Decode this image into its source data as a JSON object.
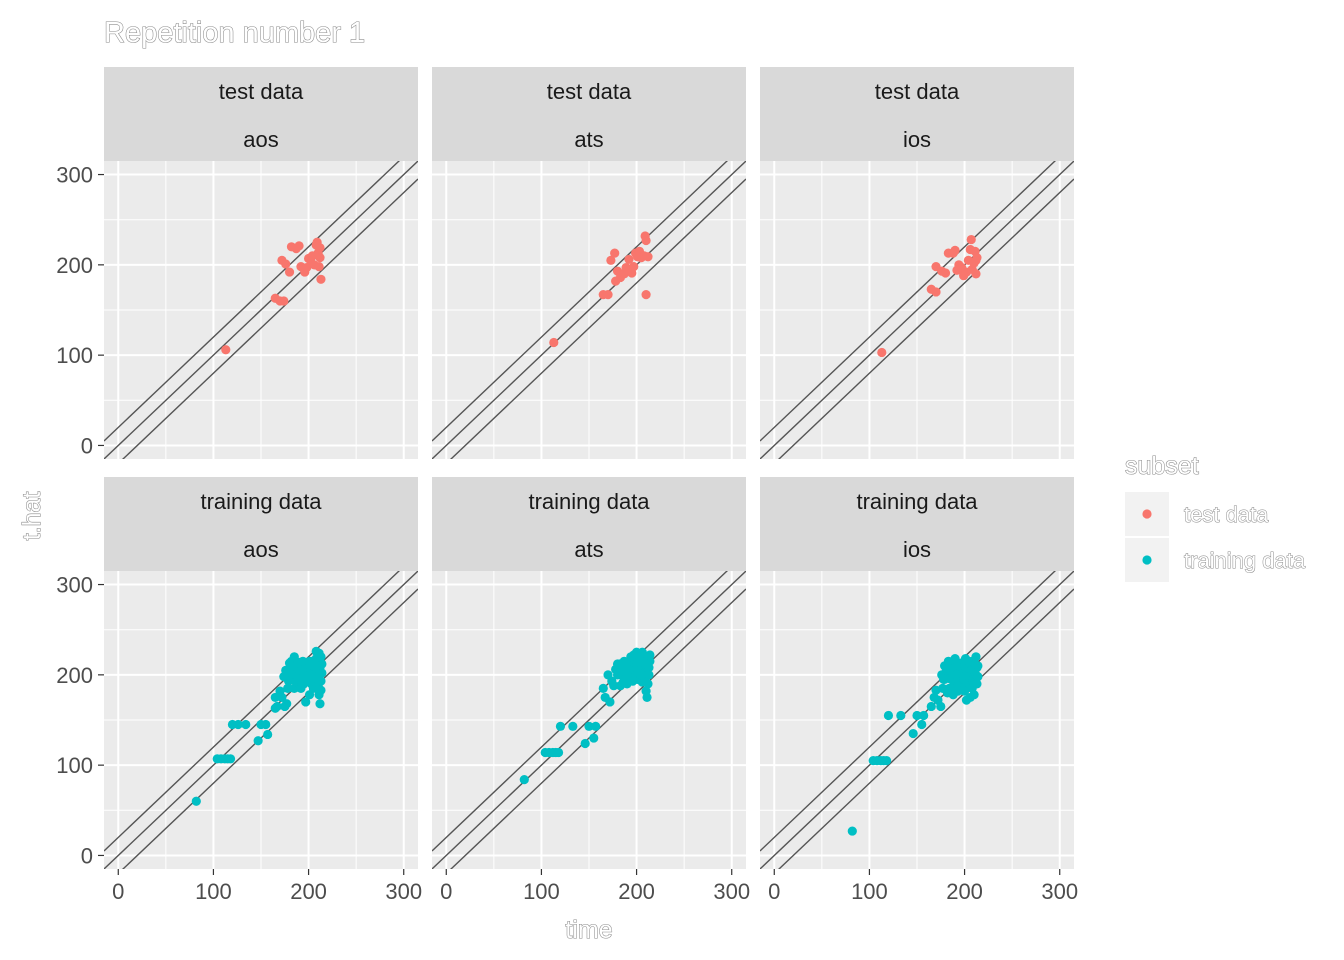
{
  "chart_data": {
    "type": "scatter",
    "title": "Repetition number 1",
    "xlabel": "time",
    "ylabel": "t.hat",
    "xlim": [
      -15,
      315
    ],
    "ylim": [
      -15,
      315
    ],
    "x_ticks": [
      0,
      100,
      200,
      300
    ],
    "y_ticks": [
      0,
      100,
      200,
      300
    ],
    "grid": true,
    "reference_lines": [
      {
        "intercept": 20,
        "slope": 1
      },
      {
        "intercept": 0,
        "slope": 1
      },
      {
        "intercept": -20,
        "slope": 1
      }
    ],
    "legend": {
      "title": "subset",
      "position": "right",
      "entries": [
        {
          "label": "test data",
          "color": "#F8766D"
        },
        {
          "label": "training data",
          "color": "#00BFC4"
        }
      ]
    },
    "facet_rows": [
      "test data",
      "training data"
    ],
    "facet_cols": [
      "aos",
      "ats",
      "ios"
    ],
    "panels": [
      {
        "subset": "test data",
        "platform": "aos",
        "color": "#F8766D",
        "points": [
          [
            113,
            106
          ],
          [
            165,
            163
          ],
          [
            170,
            160
          ],
          [
            174,
            160
          ],
          [
            172,
            205
          ],
          [
            176,
            201
          ],
          [
            180,
            192
          ],
          [
            182,
            220
          ],
          [
            187,
            218
          ],
          [
            190,
            221
          ],
          [
            192,
            198
          ],
          [
            196,
            192
          ],
          [
            198,
            197
          ],
          [
            200,
            207
          ],
          [
            202,
            205
          ],
          [
            204,
            210
          ],
          [
            206,
            200
          ],
          [
            208,
            222
          ],
          [
            209,
            225
          ],
          [
            210,
            213
          ],
          [
            211,
            198
          ],
          [
            212,
            219
          ],
          [
            212,
            208
          ],
          [
            213,
            184
          ]
        ]
      },
      {
        "subset": "test data",
        "platform": "ats",
        "color": "#F8766D",
        "points": [
          [
            113,
            114
          ],
          [
            165,
            167
          ],
          [
            170,
            167
          ],
          [
            173,
            205
          ],
          [
            177,
            213
          ],
          [
            178,
            182
          ],
          [
            180,
            193
          ],
          [
            183,
            186
          ],
          [
            187,
            190
          ],
          [
            189,
            197
          ],
          [
            192,
            206
          ],
          [
            195,
            191
          ],
          [
            197,
            198
          ],
          [
            199,
            213
          ],
          [
            201,
            209
          ],
          [
            203,
            215
          ],
          [
            205,
            208
          ],
          [
            208,
            210
          ],
          [
            209,
            232
          ],
          [
            210,
            227
          ],
          [
            210,
            167
          ],
          [
            212,
            209
          ]
        ]
      },
      {
        "subset": "test data",
        "platform": "ios",
        "color": "#F8766D",
        "points": [
          [
            113,
            103
          ],
          [
            165,
            173
          ],
          [
            170,
            170
          ],
          [
            170,
            198
          ],
          [
            176,
            193
          ],
          [
            180,
            191
          ],
          [
            183,
            213
          ],
          [
            188,
            213
          ],
          [
            190,
            216
          ],
          [
            192,
            194
          ],
          [
            194,
            200
          ],
          [
            197,
            197
          ],
          [
            199,
            188
          ],
          [
            202,
            192
          ],
          [
            204,
            205
          ],
          [
            206,
            217
          ],
          [
            207,
            228
          ],
          [
            208,
            195
          ],
          [
            210,
            202
          ],
          [
            211,
            215
          ],
          [
            212,
            205
          ],
          [
            212,
            190
          ],
          [
            213,
            208
          ]
        ]
      },
      {
        "subset": "training data",
        "platform": "aos",
        "color": "#00BFC4",
        "points": [
          [
            82,
            60
          ],
          [
            104,
            107
          ],
          [
            108,
            107
          ],
          [
            112,
            107
          ],
          [
            115,
            107
          ],
          [
            118,
            107
          ],
          [
            120,
            145
          ],
          [
            126,
            145
          ],
          [
            134,
            145
          ],
          [
            147,
            127
          ],
          [
            150,
            145
          ],
          [
            155,
            145
          ],
          [
            157,
            134
          ],
          [
            165,
            163
          ],
          [
            165,
            175
          ],
          [
            167,
            165
          ],
          [
            170,
            182
          ],
          [
            172,
            175
          ],
          [
            175,
            165
          ],
          [
            177,
            168
          ],
          [
            178,
            185
          ],
          [
            180,
            195
          ],
          [
            180,
            203
          ],
          [
            180,
            213
          ],
          [
            182,
            215
          ],
          [
            184,
            205
          ],
          [
            185,
            185
          ],
          [
            187,
            192
          ],
          [
            188,
            212
          ],
          [
            190,
            210
          ],
          [
            190,
            200
          ],
          [
            192,
            203
          ],
          [
            192,
            185
          ],
          [
            194,
            215
          ],
          [
            195,
            190
          ],
          [
            196,
            203
          ],
          [
            197,
            170
          ],
          [
            198,
            195
          ],
          [
            199,
            208
          ],
          [
            200,
            212
          ],
          [
            200,
            195
          ],
          [
            201,
            178
          ],
          [
            202,
            200
          ],
          [
            203,
            190
          ],
          [
            203,
            208
          ],
          [
            204,
            215
          ],
          [
            205,
            196
          ],
          [
            205,
            185
          ],
          [
            206,
            202
          ],
          [
            207,
            210
          ],
          [
            207,
            192
          ],
          [
            208,
            218
          ],
          [
            208,
            226
          ],
          [
            209,
            205
          ],
          [
            210,
            195
          ],
          [
            210,
            188
          ],
          [
            210,
            213
          ],
          [
            211,
            200
          ],
          [
            211,
            178
          ],
          [
            212,
            168
          ],
          [
            212,
            208
          ],
          [
            213,
            193
          ],
          [
            213,
            183
          ],
          [
            214,
            202
          ],
          [
            214,
            212
          ],
          [
            213,
            220
          ],
          [
            211,
            224
          ],
          [
            209,
            210
          ],
          [
            206,
            205
          ],
          [
            203,
            200
          ],
          [
            201,
            215
          ],
          [
            199,
            202
          ],
          [
            197,
            193
          ],
          [
            195,
            200
          ],
          [
            193,
            208
          ],
          [
            191,
            195
          ],
          [
            189,
            205
          ],
          [
            186,
            198
          ],
          [
            184,
            210
          ],
          [
            182,
            200
          ],
          [
            185,
            220
          ],
          [
            189,
            214
          ],
          [
            179,
            193
          ],
          [
            176,
            205
          ],
          [
            174,
            198
          ]
        ]
      },
      {
        "subset": "training data",
        "platform": "ats",
        "color": "#00BFC4",
        "points": [
          [
            82,
            84
          ],
          [
            104,
            114
          ],
          [
            108,
            114
          ],
          [
            112,
            114
          ],
          [
            115,
            114
          ],
          [
            118,
            114
          ],
          [
            120,
            143
          ],
          [
            133,
            143
          ],
          [
            146,
            124
          ],
          [
            150,
            143
          ],
          [
            155,
            130
          ],
          [
            157,
            143
          ],
          [
            165,
            185
          ],
          [
            167,
            175
          ],
          [
            170,
            200
          ],
          [
            172,
            170
          ],
          [
            174,
            193
          ],
          [
            176,
            188
          ],
          [
            178,
            206
          ],
          [
            180,
            200
          ],
          [
            180,
            212
          ],
          [
            182,
            212
          ],
          [
            183,
            188
          ],
          [
            184,
            200
          ],
          [
            186,
            192
          ],
          [
            188,
            195
          ],
          [
            189,
            208
          ],
          [
            190,
            190
          ],
          [
            191,
            203
          ],
          [
            192,
            213
          ],
          [
            193,
            197
          ],
          [
            194,
            205
          ],
          [
            195,
            212
          ],
          [
            196,
            200
          ],
          [
            197,
            222
          ],
          [
            197,
            207
          ],
          [
            198,
            215
          ],
          [
            199,
            200
          ],
          [
            200,
            225
          ],
          [
            200,
            210
          ],
          [
            201,
            195
          ],
          [
            202,
            215
          ],
          [
            203,
            220
          ],
          [
            203,
            205
          ],
          [
            204,
            200
          ],
          [
            205,
            212
          ],
          [
            206,
            225
          ],
          [
            206,
            192
          ],
          [
            207,
            215
          ],
          [
            208,
            205
          ],
          [
            208,
            220
          ],
          [
            209,
            195
          ],
          [
            210,
            210
          ],
          [
            210,
            182
          ],
          [
            211,
            203
          ],
          [
            211,
            175
          ],
          [
            212,
            218
          ],
          [
            212,
            190
          ],
          [
            213,
            208
          ],
          [
            213,
            200
          ],
          [
            214,
            215
          ],
          [
            214,
            222
          ],
          [
            198,
            205
          ],
          [
            196,
            193
          ],
          [
            194,
            220
          ],
          [
            185,
            205
          ],
          [
            187,
            215
          ],
          [
            201,
            203
          ],
          [
            205,
            200
          ],
          [
            209,
            213
          ]
        ]
      },
      {
        "subset": "training data",
        "platform": "ios",
        "color": "#00BFC4",
        "points": [
          [
            82,
            27
          ],
          [
            104,
            105
          ],
          [
            108,
            105
          ],
          [
            112,
            105
          ],
          [
            115,
            105
          ],
          [
            118,
            105
          ],
          [
            120,
            155
          ],
          [
            133,
            155
          ],
          [
            146,
            135
          ],
          [
            150,
            155
          ],
          [
            155,
            145
          ],
          [
            157,
            155
          ],
          [
            165,
            165
          ],
          [
            168,
            175
          ],
          [
            170,
            183
          ],
          [
            172,
            172
          ],
          [
            175,
            165
          ],
          [
            176,
            200
          ],
          [
            177,
            185
          ],
          [
            178,
            195
          ],
          [
            179,
            210
          ],
          [
            180,
            198
          ],
          [
            181,
            205
          ],
          [
            182,
            180
          ],
          [
            183,
            215
          ],
          [
            184,
            185
          ],
          [
            185,
            205
          ],
          [
            186,
            195
          ],
          [
            187,
            213
          ],
          [
            188,
            200
          ],
          [
            189,
            192
          ],
          [
            190,
            208
          ],
          [
            190,
            218
          ],
          [
            191,
            185
          ],
          [
            192,
            205
          ],
          [
            193,
            195
          ],
          [
            194,
            210
          ],
          [
            195,
            200
          ],
          [
            196,
            213
          ],
          [
            197,
            188
          ],
          [
            198,
            205
          ],
          [
            199,
            195
          ],
          [
            200,
            210
          ],
          [
            200,
            182
          ],
          [
            201,
            218
          ],
          [
            202,
            200
          ],
          [
            203,
            190
          ],
          [
            203,
            208
          ],
          [
            204,
            215
          ],
          [
            205,
            198
          ],
          [
            206,
            175
          ],
          [
            206,
            210
          ],
          [
            207,
            205
          ],
          [
            208,
            185
          ],
          [
            208,
            215
          ],
          [
            209,
            195
          ],
          [
            210,
            205
          ],
          [
            210,
            178
          ],
          [
            211,
            212
          ],
          [
            211,
            192
          ],
          [
            212,
            200
          ],
          [
            212,
            220
          ],
          [
            213,
            208
          ],
          [
            213,
            190
          ],
          [
            214,
            210
          ],
          [
            214,
            198
          ],
          [
            188,
            178
          ],
          [
            193,
            182
          ],
          [
            198,
            183
          ],
          [
            202,
            172
          ],
          [
            185,
            205
          ],
          [
            191,
            200
          ],
          [
            179,
            195
          ]
        ]
      }
    ]
  }
}
